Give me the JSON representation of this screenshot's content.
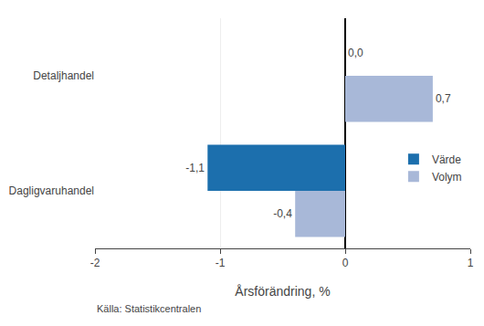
{
  "chart_data": {
    "type": "bar",
    "orientation": "horizontal",
    "categories": [
      "Dagligvaruhandel",
      "Detaljhandel"
    ],
    "series": [
      {
        "name": "Värde",
        "color": "#1c6fad",
        "values": [
          -1.1,
          0.0
        ],
        "value_labels": [
          "-1,1",
          "0,0"
        ]
      },
      {
        "name": "Volym",
        "color": "#a8b8d8",
        "values": [
          -0.4,
          0.7
        ],
        "value_labels": [
          "-0,4",
          "0,7"
        ]
      }
    ],
    "xlabel": "Årsförändring, %",
    "xlim": [
      -2,
      1
    ],
    "xticks": [
      -2,
      -1,
      0,
      1
    ],
    "data_labels": true,
    "grid": true,
    "legend": "right",
    "annotations": [
      "Källa: Statistikcentralen"
    ]
  }
}
